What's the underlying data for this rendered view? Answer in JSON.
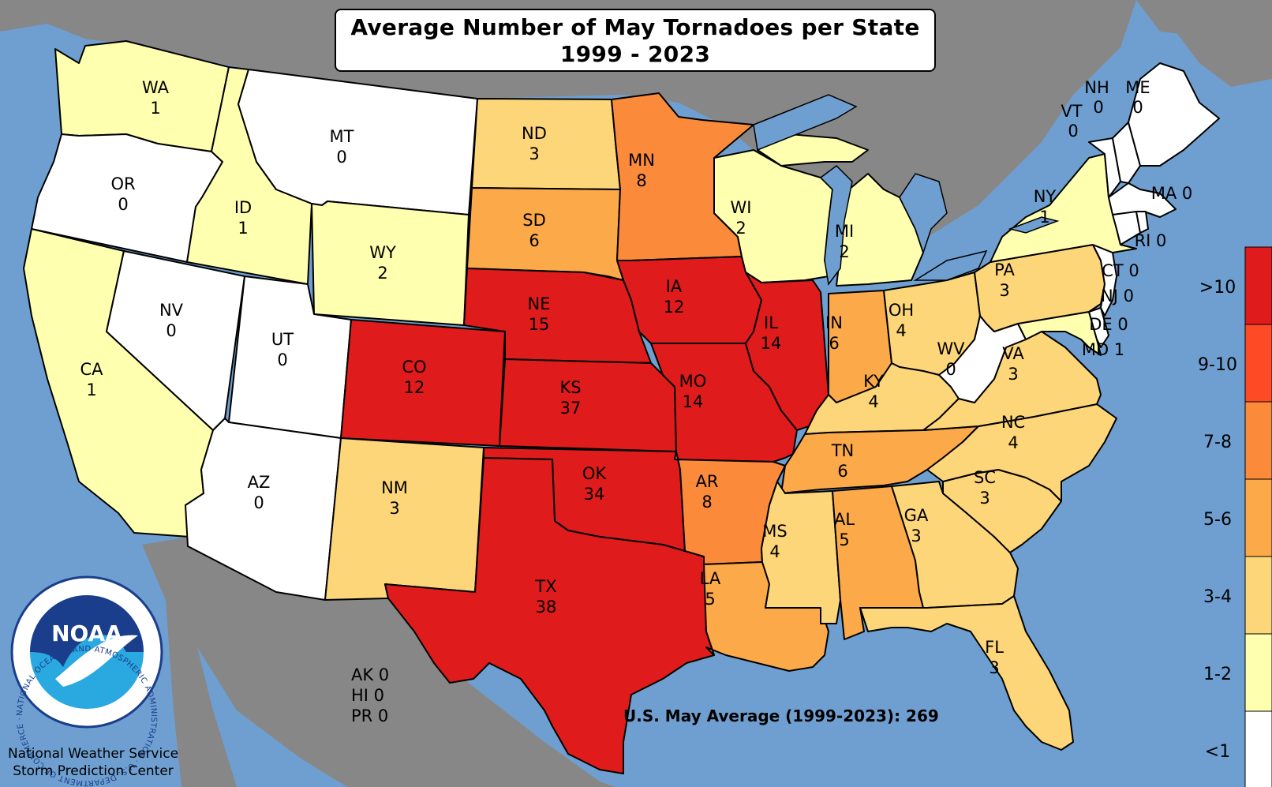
{
  "title": {
    "line1": "Average Number of May Tornadoes per State",
    "line2": "1999 - 2023"
  },
  "footer_total": "U.S. May Average (1999-2023): 269",
  "legend": [
    {
      "label": ">10",
      "color": "#e01b1b"
    },
    {
      "label": "9-10",
      "color": "#ff4a26"
    },
    {
      "label": "7-8",
      "color": "#fb8a3a"
    },
    {
      "label": "5-6",
      "color": "#fca94a"
    },
    {
      "label": "3-4",
      "color": "#fdd679"
    },
    {
      "label": "1-2",
      "color": "#ffffb0"
    },
    {
      "label": "<1",
      "color": "#ffffff"
    }
  ],
  "states": {
    "WA": {
      "abbr": "WA",
      "value": "1"
    },
    "OR": {
      "abbr": "OR",
      "value": "0"
    },
    "CA": {
      "abbr": "CA",
      "value": "1"
    },
    "ID": {
      "abbr": "ID",
      "value": "1"
    },
    "NV": {
      "abbr": "NV",
      "value": "0"
    },
    "MT": {
      "abbr": "MT",
      "value": "0"
    },
    "WY": {
      "abbr": "WY",
      "value": "2"
    },
    "UT": {
      "abbr": "UT",
      "value": "0"
    },
    "AZ": {
      "abbr": "AZ",
      "value": "0"
    },
    "CO": {
      "abbr": "CO",
      "value": "12"
    },
    "NM": {
      "abbr": "NM",
      "value": "3"
    },
    "ND": {
      "abbr": "ND",
      "value": "3"
    },
    "SD": {
      "abbr": "SD",
      "value": "6"
    },
    "NE": {
      "abbr": "NE",
      "value": "15"
    },
    "KS": {
      "abbr": "KS",
      "value": "37"
    },
    "OK": {
      "abbr": "OK",
      "value": "34"
    },
    "TX": {
      "abbr": "TX",
      "value": "38"
    },
    "MN": {
      "abbr": "MN",
      "value": "8"
    },
    "IA": {
      "abbr": "IA",
      "value": "12"
    },
    "MO": {
      "abbr": "MO",
      "value": "14"
    },
    "AR": {
      "abbr": "AR",
      "value": "8"
    },
    "LA": {
      "abbr": "LA",
      "value": "5"
    },
    "WI": {
      "abbr": "WI",
      "value": "2"
    },
    "IL": {
      "abbr": "IL",
      "value": "14"
    },
    "MI": {
      "abbr": "MI",
      "value": "2"
    },
    "IN": {
      "abbr": "IN",
      "value": "6"
    },
    "OH": {
      "abbr": "OH",
      "value": "4"
    },
    "KY": {
      "abbr": "KY",
      "value": "4"
    },
    "TN": {
      "abbr": "TN",
      "value": "6"
    },
    "MS": {
      "abbr": "MS",
      "value": "4"
    },
    "AL": {
      "abbr": "AL",
      "value": "5"
    },
    "GA": {
      "abbr": "GA",
      "value": "3"
    },
    "FL": {
      "abbr": "FL",
      "value": "3"
    },
    "SC": {
      "abbr": "SC",
      "value": "3"
    },
    "NC": {
      "abbr": "NC",
      "value": "4"
    },
    "VA": {
      "abbr": "VA",
      "value": "3"
    },
    "WV": {
      "abbr": "WV",
      "value": "0"
    },
    "PA": {
      "abbr": "PA",
      "value": "3"
    },
    "NY": {
      "abbr": "NY",
      "value": "1"
    }
  },
  "small_states": {
    "NH": "NH",
    "NH_val": "0",
    "ME": "ME",
    "ME_val": "0",
    "VT": "VT",
    "VT_val": "0",
    "MA": "MA 0",
    "RI": "RI 0",
    "CT": "CT 0",
    "NJ": "NJ 0",
    "DE": "DE 0",
    "MD": "MD 1"
  },
  "offmap": {
    "AK": "AK 0",
    "HI": "HI 0",
    "PR": "PR 0"
  },
  "logo": {
    "text": "NOAA",
    "ring_text": "NATIONAL OCEANIC AND ATMOSPHERIC ADMINISTRATION · U.S. DEPARTMENT OF COMMERCE ·"
  },
  "credit": {
    "line1": "National Weather Service",
    "line2": "Storm Prediction Center"
  }
}
